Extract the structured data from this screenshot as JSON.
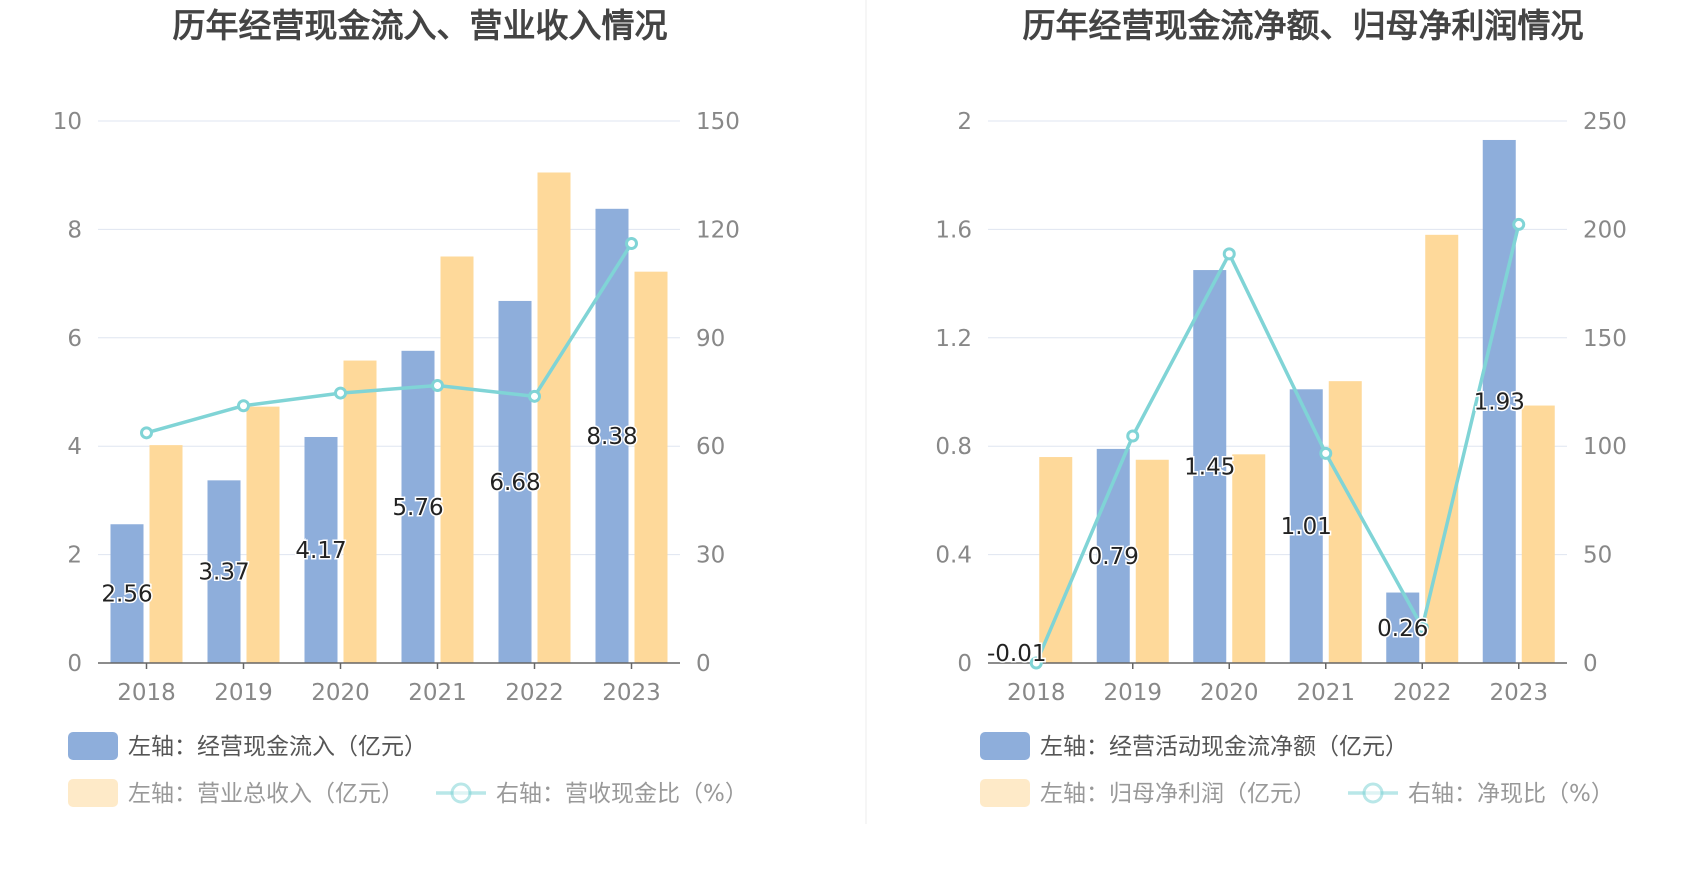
{
  "colors": {
    "bar_primary": "#8eaedb",
    "bar_secondary": "#fed99a",
    "line": "#80d4d6",
    "grid": "#dfe5f0",
    "axis_text": "#888888",
    "title": "#444444",
    "divider": "#ececec",
    "label_text": "#222222",
    "legend_text": "#555555"
  },
  "chart_data": [
    {
      "type": "bar",
      "title": "历年经营现金流入、营业收入情况",
      "categories": [
        "2018",
        "2019",
        "2020",
        "2021",
        "2022",
        "2023"
      ],
      "left_axis": {
        "ticks": [
          "0",
          "2",
          "4",
          "6",
          "8",
          "10"
        ],
        "min": 0,
        "max": 10
      },
      "right_axis": {
        "ticks": [
          "0",
          "30",
          "60",
          "90",
          "120",
          "150"
        ],
        "min": 0,
        "max": 150
      },
      "grid": true,
      "legend_position": "bottom-left",
      "series": [
        {
          "name": "左轴：经营现金流入（亿元）",
          "kind": "bar",
          "axis": "left",
          "color_key": "bar_primary",
          "values": [
            2.56,
            3.37,
            4.17,
            5.76,
            6.68,
            8.38
          ],
          "labels": [
            "2.56",
            "3.37",
            "4.17",
            "5.76",
            "6.68",
            "8.38"
          ]
        },
        {
          "name": "左轴：营业总收入（亿元）",
          "kind": "bar",
          "axis": "left",
          "color_key": "bar_secondary",
          "values": [
            4.02,
            4.73,
            5.58,
            7.5,
            9.05,
            7.22
          ]
        },
        {
          "name": "右轴：营收现金比（%）",
          "kind": "line",
          "axis": "right",
          "color_key": "line",
          "values": [
            63.7,
            71.2,
            74.7,
            76.8,
            73.8,
            116.1
          ]
        }
      ]
    },
    {
      "type": "bar",
      "title": "历年经营现金流净额、归母净利润情况",
      "categories": [
        "2018",
        "2019",
        "2020",
        "2021",
        "2022",
        "2023"
      ],
      "left_axis": {
        "ticks": [
          "0",
          "0.4",
          "0.8",
          "1.2",
          "1.6",
          "2"
        ],
        "min": 0,
        "max": 2
      },
      "right_axis": {
        "ticks": [
          "0",
          "50",
          "100",
          "150",
          "200",
          "250"
        ],
        "min": 0,
        "max": 250
      },
      "grid": true,
      "legend_position": "bottom-left",
      "series": [
        {
          "name": "左轴：经营活动现金流净额（亿元）",
          "kind": "bar",
          "axis": "left",
          "color_key": "bar_primary",
          "values": [
            -0.01,
            0.79,
            1.45,
            1.01,
            0.26,
            1.93
          ],
          "labels": [
            "-0.01",
            "0.79",
            "1.45",
            "1.01",
            "0.26",
            "1.93"
          ]
        },
        {
          "name": "左轴：归母净利润（亿元）",
          "kind": "bar",
          "axis": "left",
          "color_key": "bar_secondary",
          "values": [
            0.76,
            0.75,
            0.77,
            1.04,
            1.58,
            0.95
          ]
        },
        {
          "name": "右轴：净现比（%）",
          "kind": "line",
          "axis": "right",
          "color_key": "line",
          "values": [
            0,
            104.7,
            188.7,
            96.7,
            16.5,
            202.3
          ]
        }
      ]
    }
  ]
}
